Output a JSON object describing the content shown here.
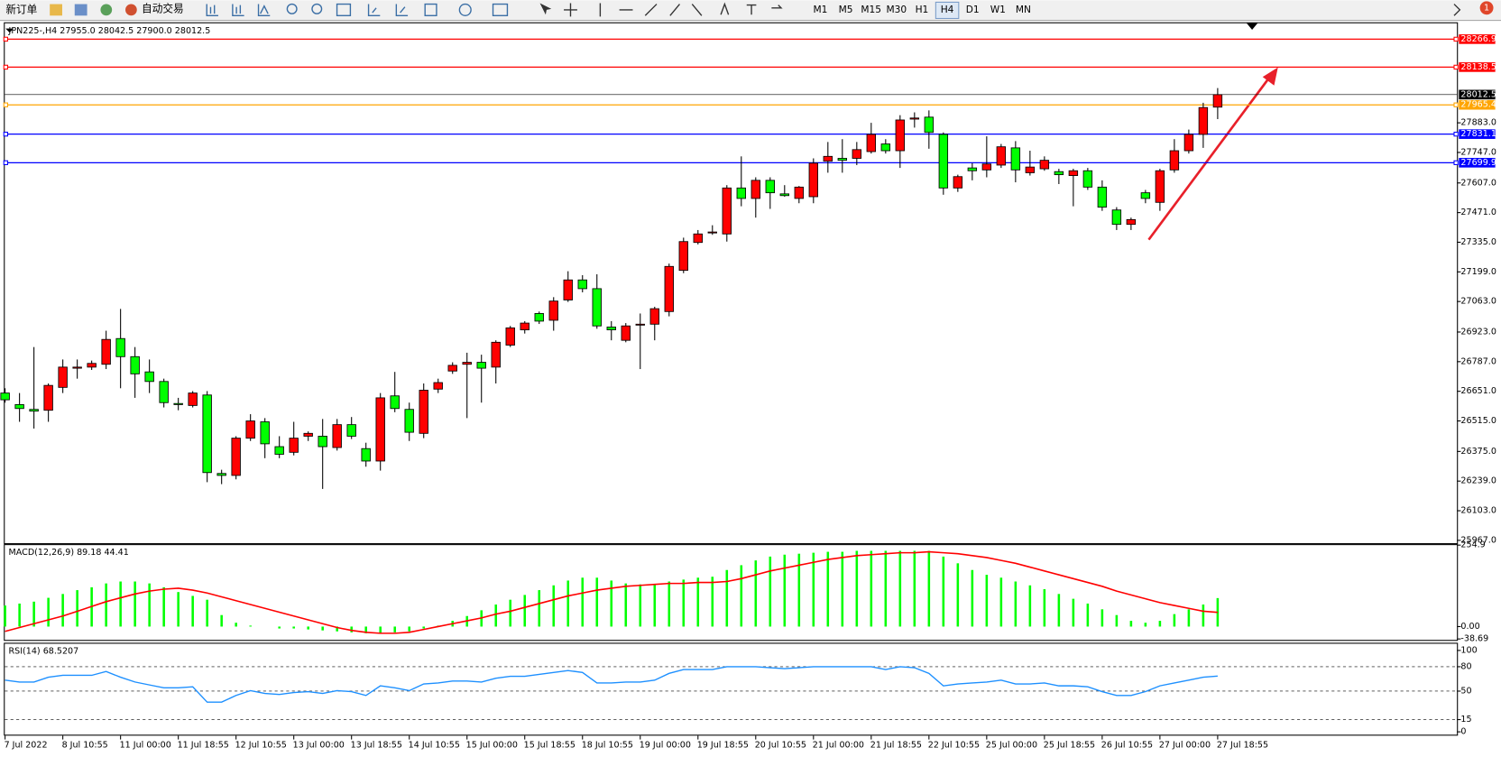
{
  "toolbar": {
    "new_order": "新订单",
    "auto_trading": "自动交易",
    "timeframes": [
      "M1",
      "M5",
      "M15",
      "M30",
      "H1",
      "H4",
      "D1",
      "W1",
      "MN"
    ],
    "notifications": "1"
  },
  "chart_data": [
    {
      "type": "candlestick",
      "title": "JPN225-,H4  27955.0 28042.5 27900.0 28012.5",
      "categories": [
        "7 Jul 2022",
        null,
        null,
        null,
        "8 Jul 10:55",
        null,
        null,
        null,
        "11 Jul 00:00",
        null,
        null,
        null,
        "11 Jul 18:55",
        null,
        null,
        null,
        "12 Jul 10:55",
        null,
        null,
        null,
        "13 Jul 00:00",
        null,
        null,
        null,
        "13 Jul 18:55",
        null,
        null,
        null,
        "14 Jul 10:55",
        null,
        null,
        null,
        "15 Jul 00:00",
        null,
        null,
        null,
        "15 Jul 18:55",
        null,
        null,
        null,
        "18 Jul 10:55",
        null,
        null,
        null,
        "19 Jul 00:00",
        null,
        null,
        null,
        "19 Jul 18:55",
        null,
        null,
        null,
        "20 Jul 10:55",
        null,
        null,
        null,
        "21 Jul 00:00",
        null,
        null,
        null,
        "21 Jul 18:55",
        null,
        null,
        null,
        "22 Jul 10:55",
        null,
        null,
        null,
        "25 Jul 00:00",
        null,
        null,
        null,
        "25 Jul 18:55",
        null,
        null,
        null,
        "26 Jul 10:55",
        null,
        null,
        null,
        "27 Jul 00:00",
        null,
        null,
        null,
        "27 Jul 18:55"
      ],
      "open": [
        26643,
        26590,
        26568,
        26564,
        26669,
        26757,
        26762,
        26775,
        26893,
        26810,
        26740,
        26696,
        26595,
        26586,
        26634,
        26274,
        26265,
        26436,
        26511,
        26397,
        26371,
        26445,
        26445,
        26393,
        26498,
        26388,
        26331,
        26630,
        26568,
        26458,
        26661,
        26744,
        26775,
        26784,
        26762,
        26863,
        26933,
        27008,
        26977,
        27070,
        27162,
        27122,
        26946,
        26885,
        26955,
        26959,
        27017,
        27206,
        27334,
        27378,
        27373,
        27584,
        27536,
        27619,
        27557,
        27536,
        27544,
        27707,
        27720,
        27720,
        27751,
        27786,
        27755,
        27900,
        27909,
        27830,
        27584,
        27676,
        27667,
        27689,
        27768,
        27654,
        27672,
        27659,
        27641,
        27663,
        27588,
        27483,
        27417,
        27562,
        27518,
        27667,
        27755,
        27830,
        27955.0
      ],
      "high": [
        26665,
        26643,
        26854,
        26687,
        26797,
        26797,
        26792,
        26929,
        27029,
        26854,
        26797,
        26709,
        26621,
        26652,
        26652,
        26291,
        26445,
        26546,
        26528,
        26445,
        26511,
        26467,
        26524,
        26524,
        26533,
        26415,
        26643,
        26740,
        26599,
        26687,
        26709,
        26784,
        26828,
        26819,
        26885,
        26951,
        26973,
        27017,
        27083,
        27202,
        27184,
        27188,
        26973,
        26964,
        27008,
        27039,
        27237,
        27356,
        27391,
        27413,
        27597,
        27729,
        27633,
        27633,
        27597,
        27593,
        27720,
        27795,
        27808,
        27795,
        27883,
        27808,
        27918,
        27931,
        27940,
        27839,
        27645,
        27698,
        27821,
        27786,
        27799,
        27755,
        27729,
        27672,
        27672,
        27676,
        27619,
        27496,
        27448,
        27575,
        27672,
        27808,
        27852,
        27975,
        28042.5
      ],
      "low": [
        26599,
        26511,
        26480,
        26511,
        26643,
        26709,
        26749,
        26753,
        26665,
        26621,
        26643,
        26577,
        26564,
        26577,
        26234,
        26225,
        26247,
        26423,
        26344,
        26344,
        26357,
        26423,
        26203,
        26379,
        26432,
        26305,
        26287,
        26555,
        26423,
        26436,
        26643,
        26731,
        26528,
        26599,
        26687,
        26854,
        26916,
        26960,
        26929,
        27061,
        27105,
        26938,
        26885,
        26876,
        26753,
        26885,
        26995,
        27193,
        27325,
        27369,
        27338,
        27500,
        27448,
        27488,
        27544,
        27514,
        27514,
        27654,
        27654,
        27689,
        27742,
        27742,
        27676,
        27861,
        27764,
        27553,
        27566,
        27619,
        27633,
        27676,
        27610,
        27641,
        27663,
        27602,
        27500,
        27575,
        27479,
        27391,
        27391,
        27514,
        27479,
        27654,
        27742,
        27768,
        27900.0
      ],
      "close": [
        26612,
        26572,
        26560,
        26678,
        26762,
        26762,
        26779,
        26889,
        26810,
        26731,
        26696,
        26599,
        26590,
        26643,
        26278,
        26265,
        26436,
        26515,
        26410,
        26362,
        26436,
        26458,
        26397,
        26498,
        26445,
        26331,
        26621,
        26572,
        26463,
        26656,
        26691,
        26770,
        26784,
        26757,
        26876,
        26942,
        26964,
        26973,
        27065,
        27162,
        27122,
        26951,
        26933,
        26951,
        26959,
        27030,
        27224,
        27338,
        27373,
        27382,
        27584,
        27536,
        27619,
        27562,
        27549,
        27588,
        27698,
        27729,
        27711,
        27760,
        27830,
        27755,
        27896,
        27905,
        27839,
        27584,
        27636,
        27663,
        27694,
        27773,
        27667,
        27680,
        27711,
        27645,
        27663,
        27588,
        27496,
        27417,
        27439,
        27536,
        27663,
        27755,
        27830,
        27953,
        28012.5
      ],
      "up_color": "#ff0000",
      "down_color": "#00ff00",
      "ylim": [
        25954,
        28331
      ],
      "yticks": [
        {
          "value": 27883,
          "label": "27883.0"
        },
        {
          "value": 27747,
          "label": "27747.0"
        },
        {
          "value": 27607,
          "label": "27607.0"
        },
        {
          "value": 27471,
          "label": "27471.0"
        },
        {
          "value": 27335,
          "label": "27335.0"
        },
        {
          "value": 27199,
          "label": "27199.0"
        },
        {
          "value": 27063,
          "label": "27063.0"
        },
        {
          "value": 26923,
          "label": "26923.0"
        },
        {
          "value": 26787,
          "label": "26787.0"
        },
        {
          "value": 26651,
          "label": "26651.0"
        },
        {
          "value": 26515,
          "label": "26515.0"
        },
        {
          "value": 26375,
          "label": "26375.0"
        },
        {
          "value": 26239,
          "label": "26239.0"
        },
        {
          "value": 26103,
          "label": "26103.0"
        },
        {
          "value": 25967,
          "label": "25967.0"
        }
      ],
      "levels": [
        {
          "value": 28266.9,
          "color": "#ff0000"
        },
        {
          "value": 28138.5,
          "color": "#ff0000"
        },
        {
          "value": 27965.4,
          "color": "#ffa500"
        },
        {
          "value": 27831.1,
          "color": "#0000ff"
        },
        {
          "value": 27699.9,
          "color": "#0000ff"
        }
      ]
    },
    {
      "type": "macd",
      "title": "MACD(12,26,9) 89.18 44.41",
      "histogram": [
        66,
        72,
        78,
        90,
        102,
        114,
        123,
        135,
        141,
        141,
        135,
        123,
        108,
        96,
        84,
        36,
        12,
        3,
        0,
        -6,
        -6,
        -9,
        -12,
        -15,
        -18,
        -21,
        -21,
        -18,
        -15,
        -6,
        3,
        18,
        33,
        51,
        69,
        84,
        99,
        114,
        129,
        144,
        153,
        153,
        144,
        135,
        132,
        132,
        141,
        147,
        153,
        156,
        177,
        192,
        207,
        219,
        225,
        228,
        231,
        234,
        234,
        237,
        237,
        237,
        237,
        237,
        237,
        219,
        198,
        177,
        162,
        153,
        141,
        129,
        117,
        102,
        87,
        72,
        54,
        36,
        18,
        12,
        18,
        39,
        54,
        69,
        89.18
      ],
      "signal": [
        -15,
        -3,
        9,
        21,
        33,
        48,
        63,
        78,
        90,
        102,
        111,
        117,
        120,
        114,
        105,
        93,
        81,
        69,
        57,
        45,
        33,
        21,
        9,
        -3,
        -12,
        -18,
        -21,
        -21,
        -18,
        -9,
        0,
        9,
        18,
        27,
        39,
        48,
        60,
        72,
        84,
        96,
        105,
        114,
        120,
        126,
        129,
        132,
        135,
        135,
        138,
        138,
        141,
        150,
        162,
        174,
        183,
        192,
        201,
        210,
        216,
        222,
        225,
        228,
        231,
        231,
        234,
        231,
        228,
        222,
        216,
        207,
        198,
        186,
        174,
        162,
        150,
        138,
        126,
        111,
        99,
        87,
        75,
        66,
        57,
        48,
        44.41
      ],
      "histogram_color": "#00ff00",
      "signal_color": "#ff0000",
      "ylim": [
        -38.69,
        254.9
      ],
      "yticks": [
        254.9,
        {
          "value": 0,
          "label": "0.00"
        },
        -38.69
      ]
    },
    {
      "type": "line",
      "title": "RSI(14) 68.5207",
      "values": [
        63.5,
        61.2,
        61.2,
        67.1,
        69.4,
        69.4,
        69.4,
        74.1,
        67.1,
        61.2,
        57.6,
        54.1,
        54.1,
        55.3,
        36.5,
        36.5,
        44.7,
        50.6,
        47.1,
        45.9,
        48.2,
        49.4,
        47.1,
        50.6,
        49.4,
        44.7,
        56.5,
        54.1,
        50.6,
        58.8,
        60.0,
        62.4,
        62.4,
        61.2,
        65.9,
        68.2,
        68.2,
        70.6,
        72.9,
        75.3,
        72.9,
        60.0,
        60.0,
        61.2,
        61.2,
        63.5,
        71.8,
        76.5,
        76.5,
        76.5,
        80.0,
        80.0,
        80.0,
        78.8,
        77.6,
        78.8,
        80.0,
        80.0,
        80.0,
        80.0,
        80.0,
        76.5,
        80.0,
        78.8,
        71.8,
        56.5,
        58.8,
        60.0,
        61.2,
        63.5,
        58.8,
        58.8,
        60.0,
        56.5,
        56.5,
        55.3,
        49.4,
        44.7,
        44.7,
        49.4,
        56.5,
        60.0,
        63.5,
        67.1,
        68.5207
      ],
      "color": "#1e90ff",
      "ylim": [
        0,
        100
      ],
      "yticks": [
        100,
        80,
        50,
        15,
        0
      ]
    }
  ]
}
